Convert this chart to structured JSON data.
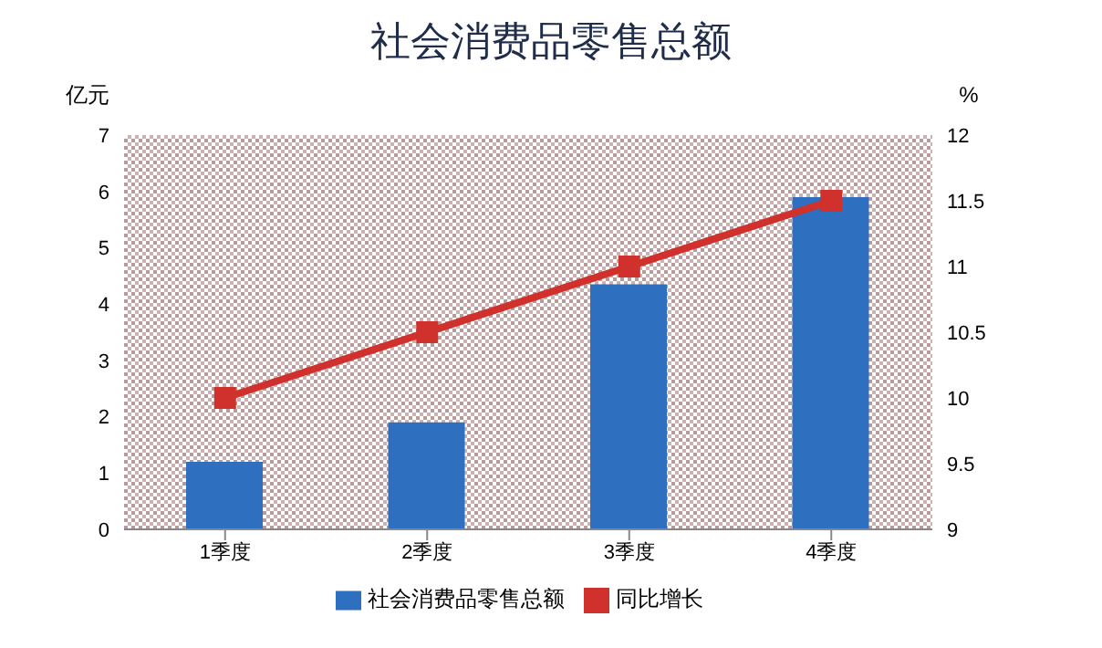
{
  "chart_data": {
    "type": "bar",
    "title": "社会消费品零售总额",
    "ylabel": "亿元",
    "y2label": "%",
    "categories": [
      "1季度",
      "2季度",
      "3季度",
      "4季度"
    ],
    "series": [
      {
        "name": "社会消费品零售总额",
        "color": "#2e6fc0",
        "values": [
          1.2,
          1.9,
          4.35,
          5.9
        ]
      },
      {
        "name": "同比增长",
        "type": "line",
        "axis": "y2",
        "color": "#d0312d",
        "values": [
          10,
          10.5,
          11,
          11.5
        ]
      }
    ],
    "ylim": [
      0,
      7
    ],
    "yticks": [
      0,
      1,
      2,
      3,
      4,
      5,
      6,
      7
    ],
    "y2lim": [
      9,
      12
    ],
    "y2ticks": [
      9,
      9.5,
      10,
      10.5,
      11,
      11.5,
      12
    ],
    "grid": false,
    "legend": "bottom",
    "marker": "square"
  }
}
